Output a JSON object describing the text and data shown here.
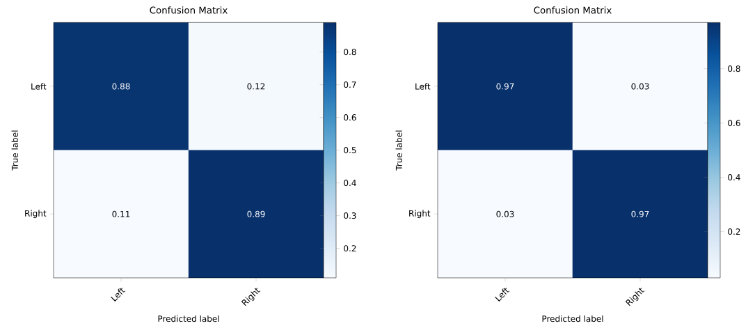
{
  "chart_data": [
    {
      "type": "heatmap",
      "title": "Confusion Matrix",
      "xlabel": "Predicted label",
      "ylabel": "True label",
      "categories": [
        "Left",
        "Right"
      ],
      "y_categories": [
        "Left",
        "Right"
      ],
      "cells": [
        [
          0.88,
          0.12
        ],
        [
          0.11,
          0.89
        ]
      ],
      "data_labels": true,
      "clim": [
        0.11,
        0.89
      ],
      "cticks": [
        0.2,
        0.3,
        0.4,
        0.5,
        0.6,
        0.7,
        0.8
      ]
    },
    {
      "type": "heatmap",
      "title": "Confusion Matrix",
      "xlabel": "Predicted label",
      "ylabel": "True label",
      "categories": [
        "Left",
        "Right"
      ],
      "y_categories": [
        "Left",
        "Right"
      ],
      "cells": [
        [
          0.97,
          0.03
        ],
        [
          0.03,
          0.97
        ]
      ],
      "data_labels": true,
      "clim": [
        0.03,
        0.97
      ],
      "cticks": [
        0.2,
        0.4,
        0.6,
        0.8
      ]
    }
  ]
}
